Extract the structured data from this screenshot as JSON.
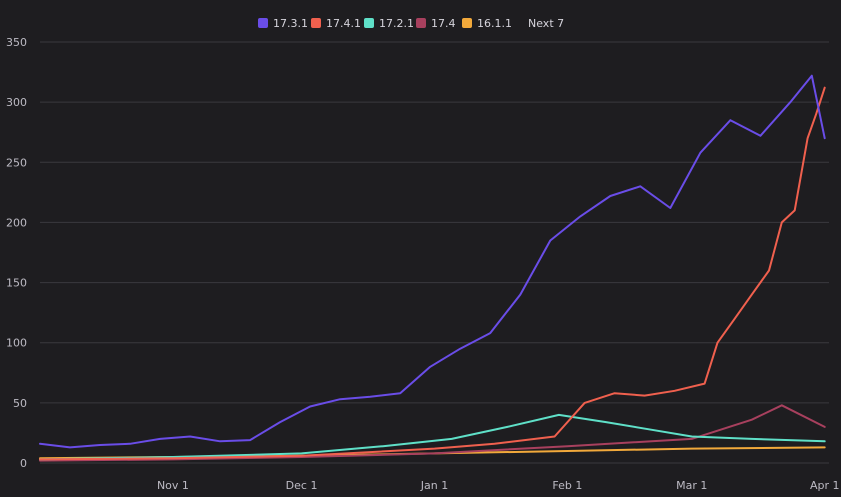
{
  "chart_data": {
    "type": "line",
    "title": "",
    "xlabel": "",
    "ylabel": "",
    "ylim": [
      0,
      350
    ],
    "yticks": [
      0,
      50,
      100,
      150,
      200,
      250,
      300,
      350
    ],
    "x_start": "2023-10-01",
    "x_end": "2024-04-02",
    "xticks": [
      {
        "date": "2023-11-01",
        "label": "Nov 1"
      },
      {
        "date": "2023-12-01",
        "label": "Dec 1"
      },
      {
        "date": "2024-01-01",
        "label": "Jan 1"
      },
      {
        "date": "2024-02-01",
        "label": "Feb 1"
      },
      {
        "date": "2024-03-01",
        "label": "Mar 1"
      },
      {
        "date": "2024-04-01",
        "label": "Apr 1"
      }
    ],
    "grid": true,
    "legend_position": "top-center",
    "legend": [
      {
        "label": "17.3.1",
        "color": "#6a4de8"
      },
      {
        "label": "17.4.1",
        "color": "#f0604e"
      },
      {
        "label": "17.2.1",
        "color": "#5fe0c8"
      },
      {
        "label": "17.4",
        "color": "#a8405e"
      },
      {
        "label": "16.1.1",
        "color": "#f2a93b"
      },
      {
        "label": "Next 7",
        "color": ""
      }
    ],
    "series": [
      {
        "name": "17.3.1",
        "color": "#6a4de8",
        "points": [
          [
            "2023-10-01",
            16
          ],
          [
            "2023-10-08",
            13
          ],
          [
            "2023-10-15",
            15
          ],
          [
            "2023-10-22",
            16
          ],
          [
            "2023-10-29",
            20
          ],
          [
            "2023-11-05",
            22
          ],
          [
            "2023-11-12",
            18
          ],
          [
            "2023-11-19",
            19
          ],
          [
            "2023-11-26",
            34
          ],
          [
            "2023-12-03",
            47
          ],
          [
            "2023-12-10",
            53
          ],
          [
            "2023-12-17",
            55
          ],
          [
            "2023-12-24",
            58
          ],
          [
            "2023-12-31",
            80
          ],
          [
            "2024-01-07",
            95
          ],
          [
            "2024-01-14",
            108
          ],
          [
            "2024-01-21",
            140
          ],
          [
            "2024-01-28",
            185
          ],
          [
            "2024-02-04",
            205
          ],
          [
            "2024-02-11",
            222
          ],
          [
            "2024-02-18",
            230
          ],
          [
            "2024-02-25",
            212
          ],
          [
            "2024-03-03",
            258
          ],
          [
            "2024-03-10",
            285
          ],
          [
            "2024-03-17",
            272
          ],
          [
            "2024-03-24",
            300
          ],
          [
            "2024-03-29",
            322
          ],
          [
            "2024-04-01",
            270
          ]
        ]
      },
      {
        "name": "17.4.1",
        "color": "#f0604e",
        "points": [
          [
            "2023-10-01",
            3
          ],
          [
            "2023-11-01",
            4
          ],
          [
            "2023-12-01",
            6
          ],
          [
            "2024-01-01",
            12
          ],
          [
            "2024-01-15",
            16
          ],
          [
            "2024-01-29",
            22
          ],
          [
            "2024-02-05",
            50
          ],
          [
            "2024-02-12",
            58
          ],
          [
            "2024-02-19",
            56
          ],
          [
            "2024-02-26",
            60
          ],
          [
            "2024-03-04",
            66
          ],
          [
            "2024-03-07",
            100
          ],
          [
            "2024-03-11",
            120
          ],
          [
            "2024-03-15",
            140
          ],
          [
            "2024-03-19",
            160
          ],
          [
            "2024-03-22",
            200
          ],
          [
            "2024-03-25",
            210
          ],
          [
            "2024-03-28",
            270
          ],
          [
            "2024-03-30",
            290
          ],
          [
            "2024-04-01",
            312
          ]
        ]
      },
      {
        "name": "17.2.1",
        "color": "#5fe0c8",
        "points": [
          [
            "2023-10-01",
            3
          ],
          [
            "2023-11-01",
            5
          ],
          [
            "2023-12-01",
            8
          ],
          [
            "2023-12-20",
            14
          ],
          [
            "2024-01-05",
            20
          ],
          [
            "2024-01-18",
            30
          ],
          [
            "2024-01-30",
            40
          ],
          [
            "2024-02-10",
            34
          ],
          [
            "2024-02-20",
            28
          ],
          [
            "2024-03-01",
            22
          ],
          [
            "2024-03-15",
            20
          ],
          [
            "2024-04-01",
            18
          ]
        ]
      },
      {
        "name": "17.4",
        "color": "#a8405e",
        "points": [
          [
            "2023-10-01",
            2
          ],
          [
            "2023-11-01",
            3
          ],
          [
            "2023-12-01",
            5
          ],
          [
            "2024-01-01",
            8
          ],
          [
            "2024-02-01",
            14
          ],
          [
            "2024-03-01",
            20
          ],
          [
            "2024-03-15",
            36
          ],
          [
            "2024-03-22",
            48
          ],
          [
            "2024-04-01",
            30
          ]
        ]
      },
      {
        "name": "16.1.1",
        "color": "#f2a93b",
        "points": [
          [
            "2023-10-01",
            4
          ],
          [
            "2023-11-01",
            5
          ],
          [
            "2023-12-01",
            6
          ],
          [
            "2024-01-01",
            8
          ],
          [
            "2024-02-01",
            10
          ],
          [
            "2024-03-01",
            12
          ],
          [
            "2024-04-01",
            13
          ]
        ]
      }
    ]
  }
}
